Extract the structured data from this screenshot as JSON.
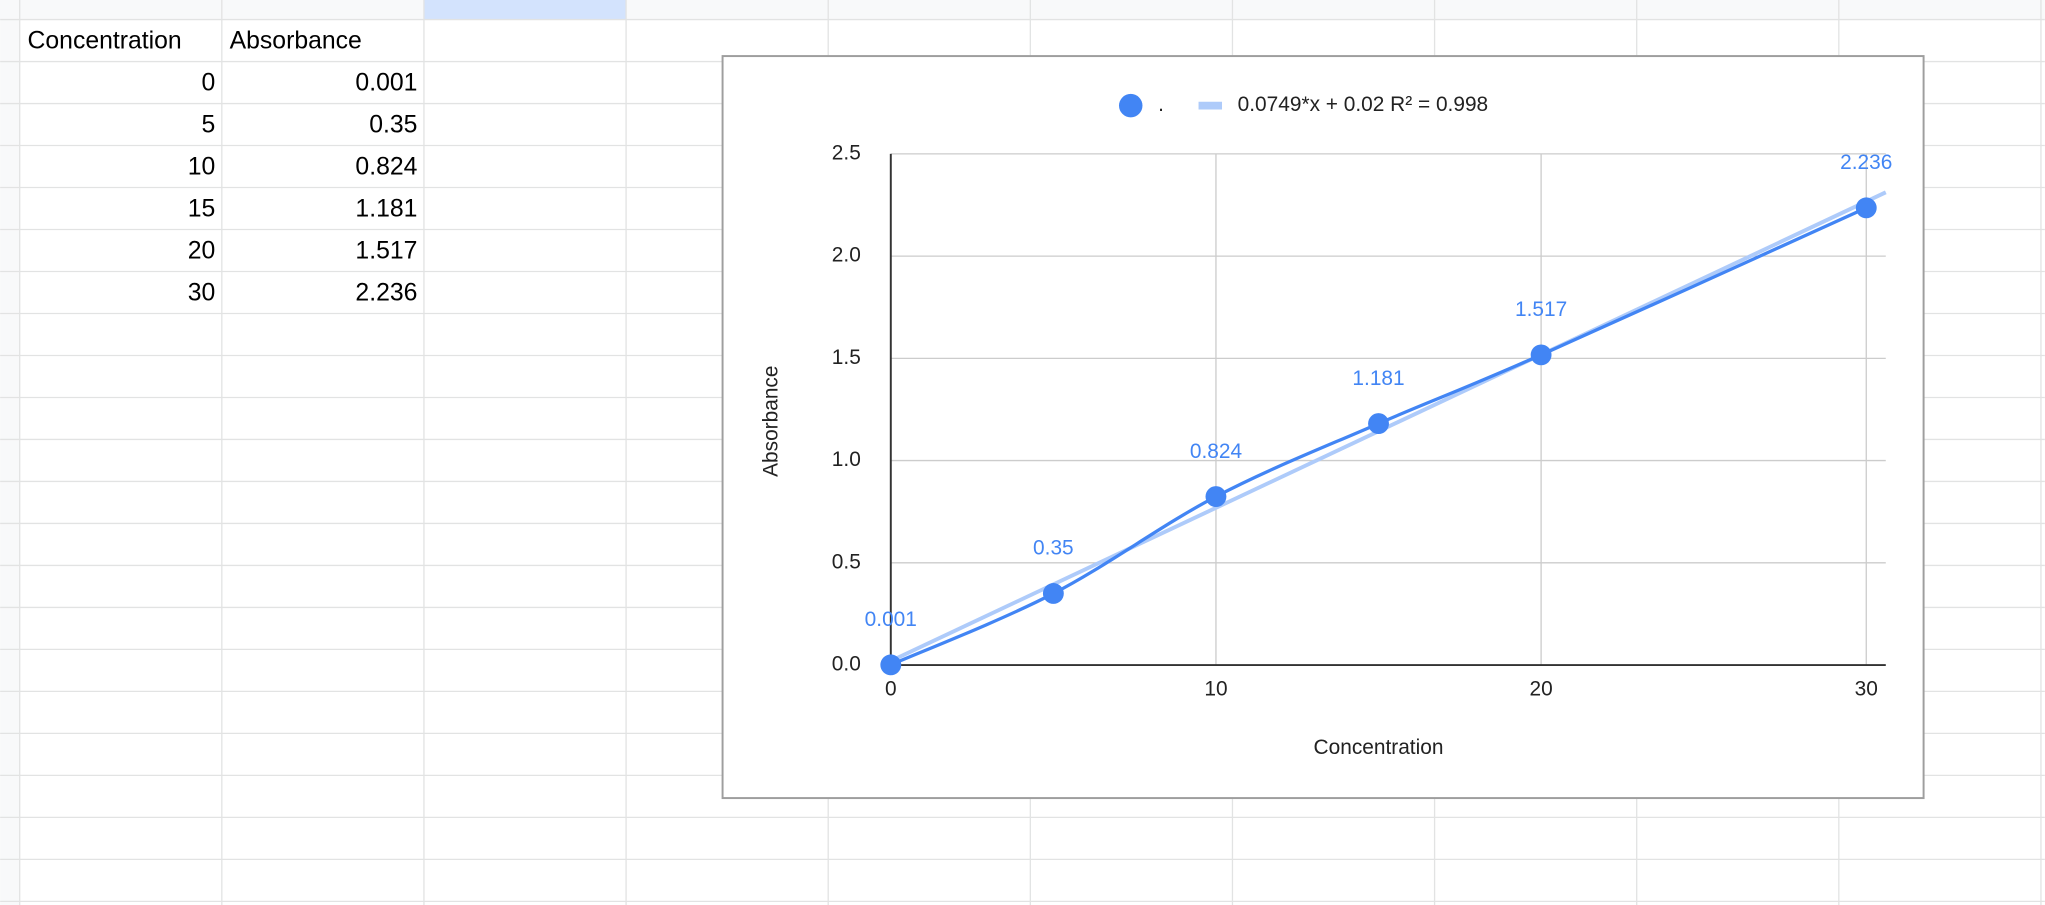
{
  "table": {
    "header": [
      "Concentration",
      "Absorbance"
    ],
    "rows": [
      [
        "0",
        "0.001"
      ],
      [
        "5",
        "0.35"
      ],
      [
        "10",
        "0.824"
      ],
      [
        "15",
        "1.181"
      ],
      [
        "20",
        "1.517"
      ],
      [
        "30",
        "2.236"
      ]
    ]
  },
  "chart_data": {
    "type": "scatter",
    "x_label": "Concentration",
    "y_label": "Absorbance",
    "x": [
      0,
      5,
      10,
      15,
      20,
      30
    ],
    "series": [
      {
        "name": ".",
        "color": "#4285f4",
        "values": [
          0.001,
          0.35,
          0.824,
          1.181,
          1.517,
          2.236
        ]
      }
    ],
    "trendline": {
      "name": "0.0749*x + 0.02 R² = 0.998",
      "slope": 0.0749,
      "intercept": 0.02,
      "color": "#aecbfa"
    },
    "xlim": [
      0,
      30.6
    ],
    "xticks": [
      0,
      10,
      20,
      30
    ],
    "ylim": [
      0,
      2.5
    ],
    "yticks": [
      {
        "value": 0,
        "label": "0.0"
      },
      {
        "value": 0.5,
        "label": "0.5"
      },
      {
        "value": 1,
        "label": "1.0"
      },
      {
        "value": 1.5,
        "label": "1.5"
      },
      {
        "value": 2,
        "label": "2.0"
      },
      {
        "value": 2.5,
        "label": "2.5"
      }
    ],
    "grid": true,
    "legend": "top"
  }
}
